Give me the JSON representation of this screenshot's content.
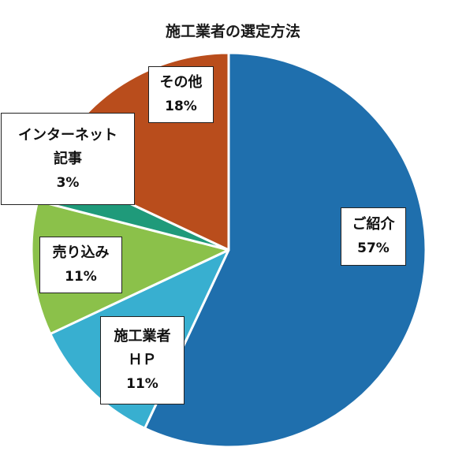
{
  "chart_data": {
    "type": "pie",
    "title": "施工業者の選定方法",
    "slices": [
      {
        "label_lines": [
          "ご紹介"
        ],
        "value": 57,
        "value_label": "57%",
        "color": "#1f6fad"
      },
      {
        "label_lines": [
          "施工業者",
          "ＨＰ"
        ],
        "value": 11,
        "value_label": "11%",
        "color": "#38afd0"
      },
      {
        "label_lines": [
          "売り込み"
        ],
        "value": 11,
        "value_label": "11%",
        "color": "#8bc14a"
      },
      {
        "label_lines": [
          "インターネット",
          "記事"
        ],
        "value": 3,
        "value_label": "3%",
        "color": "#1f9a7a"
      },
      {
        "label_lines": [
          "その他"
        ],
        "value": 18,
        "value_label": "18%",
        "color": "#b94d1c"
      }
    ],
    "start_angle_deg": 0,
    "direction": "clockwise",
    "slice_border_color": "#ffffff"
  }
}
